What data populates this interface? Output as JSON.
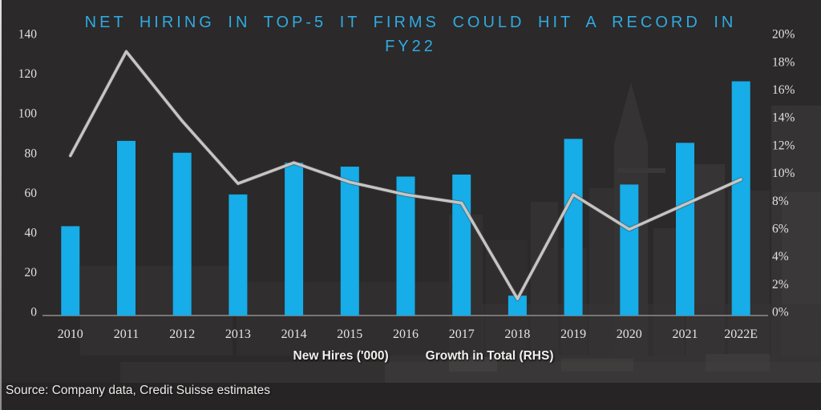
{
  "title_lines": [
    "NET HIRING IN TOP-5 IT FIRMS COULD HIT A RECORD IN",
    "FY22"
  ],
  "colors": {
    "background": "#2b292a",
    "bar": "#16ade8",
    "line": "#c7c5c3",
    "title": "#2faae1",
    "axis_text": "#e3e1de",
    "axis_line": "#8f8d8b"
  },
  "chart_data": {
    "type": "bar",
    "combo": "bar+line dual-axis",
    "title": "NET HIRING IN TOP-5 IT FIRMS COULD HIT A RECORD IN FY22",
    "categories": [
      "2010",
      "2011",
      "2012",
      "2013",
      "2014",
      "2015",
      "2016",
      "2017",
      "2018",
      "2019",
      "2020",
      "2021",
      "2022E"
    ],
    "series": [
      {
        "name": "New Hires ('000)",
        "type": "bar",
        "axis": "left",
        "color": "#16ade8",
        "values": [
          45,
          88,
          82,
          61,
          77,
          75,
          70,
          71,
          10,
          89,
          66,
          87,
          118
        ]
      },
      {
        "name": "Growth in Total (RHS)",
        "type": "line",
        "axis": "right",
        "color": "#c7c5c3",
        "values": [
          11.5,
          19,
          14,
          9.5,
          11,
          9.6,
          8.7,
          8.1,
          1.2,
          8.7,
          6.2,
          8,
          9.8
        ]
      }
    ],
    "left_axis": {
      "min": 0,
      "max": 140,
      "step": 20,
      "tick_labels": [
        "140",
        "120",
        "100",
        "80",
        "60",
        "40",
        "20",
        "0"
      ]
    },
    "right_axis": {
      "min": 0,
      "max": 20,
      "step": 2,
      "tick_labels": [
        "20%",
        "18%",
        "16%",
        "14%",
        "12%",
        "10%",
        "8%",
        "6%",
        "4%",
        "2%",
        "0%"
      ]
    },
    "grid": false,
    "legend_position": "bottom"
  },
  "legend": {
    "bar_label": "New Hires ('000)",
    "line_label": "Growth in Total (RHS)"
  },
  "source": "Source: Company data, Credit Suisse estimates"
}
